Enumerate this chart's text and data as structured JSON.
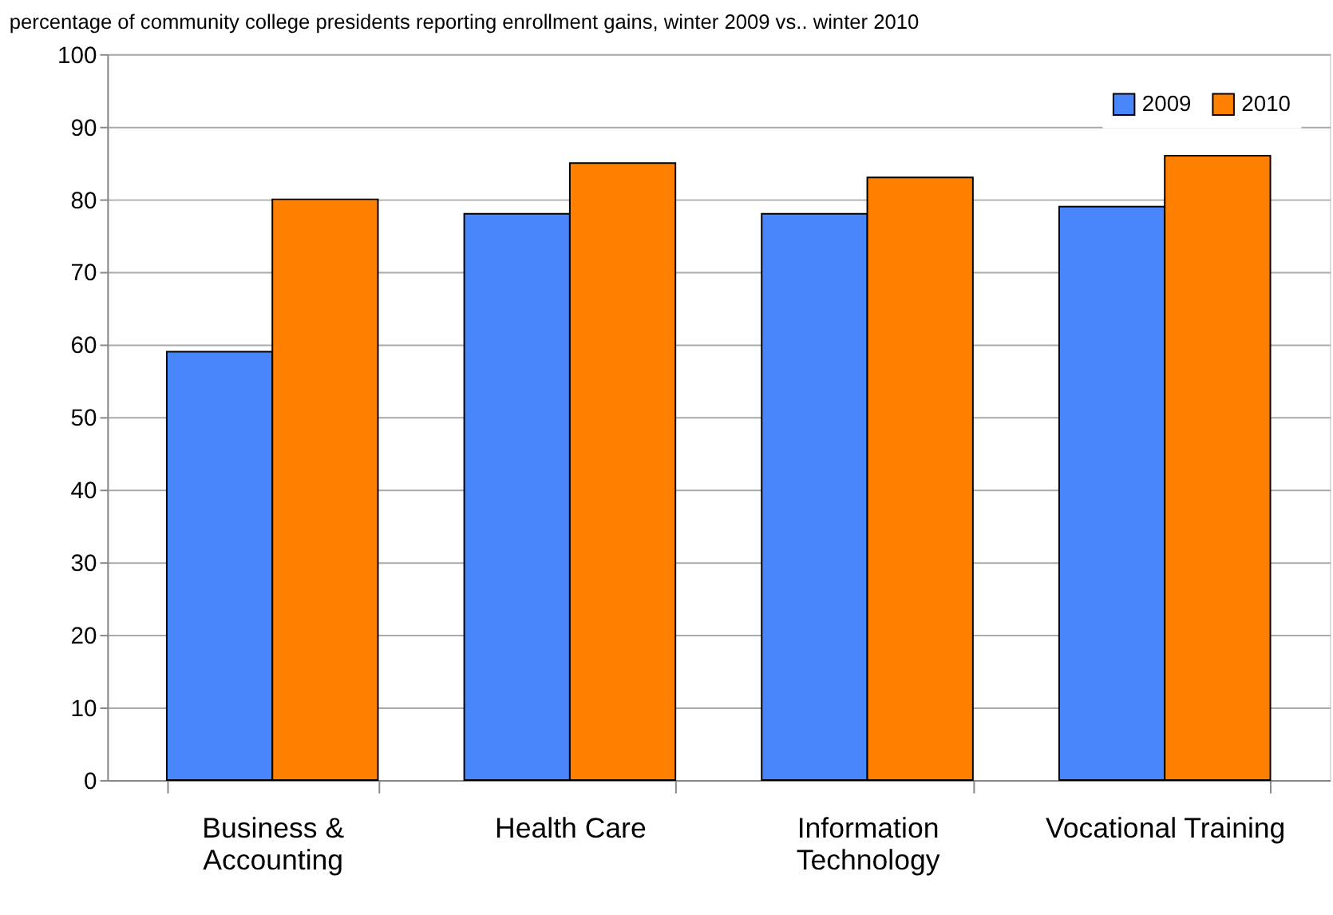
{
  "chart_data": {
    "type": "bar",
    "title": "percentage of community college presidents reporting enrollment gains, winter 2009 vs.. winter 2010",
    "categories": [
      "Business &\nAccounting",
      "Health Care",
      "Information\nTechnology",
      "Vocational Training"
    ],
    "series": [
      {
        "name": "2009",
        "color": "#4a86fb",
        "values": [
          59,
          78,
          78,
          79
        ]
      },
      {
        "name": "2010",
        "color": "#ff7f00",
        "values": [
          80,
          85,
          83,
          86
        ]
      }
    ],
    "ylim": [
      0,
      100
    ],
    "yticks": [
      0,
      10,
      20,
      30,
      40,
      50,
      60,
      70,
      80,
      90,
      100
    ],
    "grid": "y",
    "legend": "top right"
  }
}
